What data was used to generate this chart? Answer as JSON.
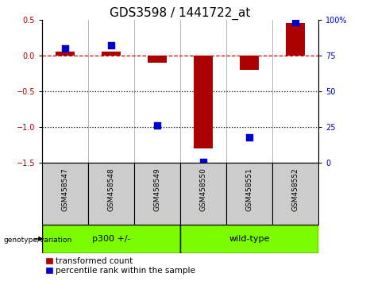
{
  "title": "GDS3598 / 1441722_at",
  "samples": [
    "GSM458547",
    "GSM458548",
    "GSM458549",
    "GSM458550",
    "GSM458551",
    "GSM458552"
  ],
  "red_values": [
    0.05,
    0.05,
    -0.1,
    -1.3,
    -0.2,
    0.45
  ],
  "blue_values_pct": [
    80,
    82,
    26,
    1,
    18,
    98
  ],
  "ylim_left": [
    -1.5,
    0.5
  ],
  "ylim_right": [
    0,
    100
  ],
  "red_color": "#aa0000",
  "blue_color": "#0000cc",
  "dashed_line_color": "#cc0000",
  "dotted_line_color": "#000000",
  "tick_label_fontsize": 7,
  "title_fontsize": 11,
  "legend_fontsize": 7.5,
  "bar_width": 0.4,
  "blue_square_size": 30,
  "sample_box_color": "#cccccc",
  "group_box_color": "#7CFC00",
  "title_color": "#000000"
}
